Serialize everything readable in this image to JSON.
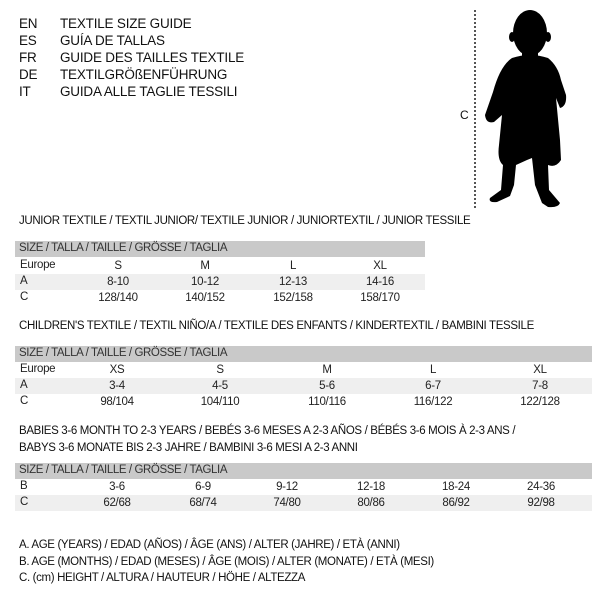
{
  "languages": [
    {
      "code": "EN",
      "name": "TEXTILE SIZE GUIDE"
    },
    {
      "code": "ES",
      "name": "GUÍA DE TALLAS"
    },
    {
      "code": "FR",
      "name": "GUIDE DES TAILLES TEXTILE"
    },
    {
      "code": "DE",
      "name": "TEXTILGRÖßENFÜHRUNG"
    },
    {
      "code": "IT",
      "name": "GUIDA ALLE TAGLIE TESSILI"
    }
  ],
  "figure": {
    "height_label": "C",
    "icon": "child-silhouette"
  },
  "junior": {
    "title": "JUNIOR TEXTILE / TEXTIL JUNIOR/ TEXTILE JUNIOR / JUNIORTEXTIL / JUNIOR TESSILE",
    "header": "SIZE / TALLA / TAILLE / GRÖSSE / TAGLIA",
    "rows": [
      {
        "label": "Europe",
        "cells": [
          "S",
          "M",
          "L",
          "XL"
        ]
      },
      {
        "label": "A",
        "cells": [
          "8-10",
          "10-12",
          "12-13",
          "14-16"
        ]
      },
      {
        "label": "C",
        "cells": [
          "128/140",
          "140/152",
          "152/158",
          "158/170"
        ]
      }
    ]
  },
  "children": {
    "title": "CHILDREN'S TEXTILE / TEXTIL NIÑO/A / TEXTILE DES ENFANTS / KINDERTEXTIL / BAMBINI TESSILE",
    "header": "SIZE / TALLA / TAILLE / GRÖSSE / TAGLIA",
    "rows": [
      {
        "label": "Europe",
        "cells": [
          "XS",
          "S",
          "M",
          "L",
          "XL"
        ]
      },
      {
        "label": "A",
        "cells": [
          "3-4",
          "4-5",
          "5-6",
          "6-7",
          "7-8"
        ]
      },
      {
        "label": "C",
        "cells": [
          "98/104",
          "104/110",
          "110/116",
          "116/122",
          "122/128"
        ]
      }
    ]
  },
  "babies": {
    "title_line1": "BABIES 3-6 MONTH TO 2-3 YEARS / BEBÉS 3-6 MESES A 2-3 AÑOS / BÉBÉS 3-6 MOIS À 2-3 ANS /",
    "title_line2": "BABYS 3-6 MONATE BIS 2-3 JAHRE / BAMBINI 3-6 MESI A 2-3 ANNI",
    "header": "SIZE / TALLA / TAILLE / GRÖSSE / TAGLIA",
    "rows": [
      {
        "label": "B",
        "cells": [
          "3-6",
          "6-9",
          "9-12",
          "12-18",
          "18-24",
          "24-36"
        ]
      },
      {
        "label": "C",
        "cells": [
          "62/68",
          "68/74",
          "74/80",
          "80/86",
          "86/92",
          "92/98"
        ]
      }
    ]
  },
  "legend": [
    "A. AGE (YEARS) / EDAD (AÑOS) / ÂGE (ANS) / ALTER (JAHRE) / ETÀ (ANNI)",
    "B. AGE (MONTHS) / EDAD (MESES) / ÂGE (MOIS) / ALTER (MONATE) / ETÀ (MESI)",
    "C. (cm) HEIGHT / ALTURA / HAUTEUR / HÖHE / ALTEZZA"
  ]
}
